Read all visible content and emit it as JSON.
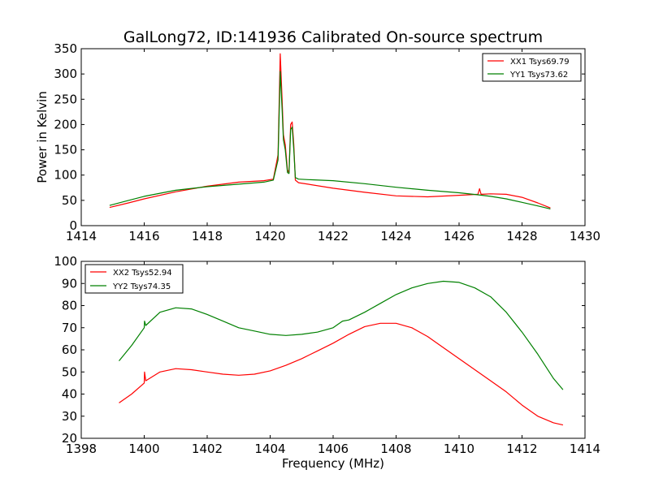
{
  "chart_data": [
    {
      "type": "line",
      "title": "GalLong72, ID:141936 Calibrated On-source spectrum",
      "xlabel": "",
      "ylabel": "Power in Kelvin",
      "xlim": [
        1414,
        1430
      ],
      "ylim": [
        0,
        350
      ],
      "xticks": [
        1414,
        1416,
        1418,
        1420,
        1422,
        1424,
        1426,
        1428,
        1430
      ],
      "yticks": [
        0,
        50,
        100,
        150,
        200,
        250,
        300,
        350
      ],
      "legend": "top-right",
      "series": [
        {
          "name": "XX1 Tsys69.79",
          "color": "#ff0000",
          "x": [
            1414.9,
            1415.5,
            1416.0,
            1417.0,
            1418.0,
            1419.0,
            1419.8,
            1420.1,
            1420.25,
            1420.32,
            1420.38,
            1420.42,
            1420.48,
            1420.55,
            1420.6,
            1420.65,
            1420.7,
            1420.75,
            1420.8,
            1420.9,
            1421.2,
            1422.0,
            1423.0,
            1424.0,
            1425.0,
            1426.0,
            1426.6,
            1426.65,
            1426.7,
            1427.0,
            1427.5,
            1428.0,
            1428.5,
            1428.9
          ],
          "values": [
            36,
            45,
            53,
            67,
            78,
            86,
            89,
            92,
            140,
            340,
            250,
            180,
            160,
            110,
            105,
            200,
            205,
            160,
            90,
            85,
            82,
            74,
            66,
            59,
            57,
            60,
            62,
            73,
            62,
            63,
            62,
            56,
            45,
            35
          ]
        },
        {
          "name": "YY1 Tsys73.62",
          "color": "#008000",
          "x": [
            1414.9,
            1415.5,
            1416.0,
            1417.0,
            1418.0,
            1419.0,
            1419.8,
            1420.1,
            1420.25,
            1420.32,
            1420.38,
            1420.42,
            1420.48,
            1420.55,
            1420.6,
            1420.65,
            1420.7,
            1420.75,
            1420.8,
            1420.9,
            1421.2,
            1422.0,
            1423.0,
            1424.0,
            1425.0,
            1426.0,
            1426.6,
            1427.0,
            1427.5,
            1428.0,
            1428.5,
            1428.9
          ],
          "values": [
            40,
            50,
            58,
            70,
            77,
            82,
            86,
            90,
            130,
            305,
            230,
            170,
            150,
            105,
            103,
            190,
            195,
            150,
            95,
            92,
            91,
            89,
            83,
            76,
            70,
            65,
            61,
            58,
            53,
            46,
            39,
            33
          ]
        }
      ]
    },
    {
      "type": "line",
      "title": "",
      "xlabel": "Frequency (MHz)",
      "ylabel": "",
      "xlim": [
        1398,
        1414
      ],
      "ylim": [
        20,
        100
      ],
      "xticks": [
        1398,
        1400,
        1402,
        1404,
        1406,
        1408,
        1410,
        1412,
        1414
      ],
      "yticks": [
        20,
        30,
        40,
        50,
        60,
        70,
        80,
        90,
        100
      ],
      "legend": "top-left",
      "series": [
        {
          "name": "XX2 Tsys52.94",
          "color": "#ff0000",
          "x": [
            1399.2,
            1399.6,
            1400.0,
            1400.01,
            1400.05,
            1400.5,
            1401.0,
            1401.5,
            1402.0,
            1402.5,
            1403.0,
            1403.5,
            1404.0,
            1404.5,
            1405.0,
            1405.5,
            1406.0,
            1406.5,
            1407.0,
            1407.5,
            1408.0,
            1408.5,
            1409.0,
            1409.5,
            1410.0,
            1410.5,
            1411.0,
            1411.5,
            1412.0,
            1412.5,
            1413.0,
            1413.3
          ],
          "values": [
            36,
            40,
            45,
            50,
            46,
            50,
            51.5,
            51,
            50,
            49,
            48.5,
            49,
            50.5,
            53,
            56,
            59.5,
            63,
            67,
            70.5,
            72,
            72,
            70,
            66,
            61,
            56,
            51,
            46,
            41,
            35,
            30,
            27,
            26
          ]
        },
        {
          "name": "YY2 Tsys74.35",
          "color": "#008000",
          "x": [
            1399.2,
            1399.6,
            1400.0,
            1400.01,
            1400.05,
            1400.5,
            1401.0,
            1401.5,
            1402.0,
            1402.5,
            1403.0,
            1403.5,
            1404.0,
            1404.5,
            1405.0,
            1405.5,
            1406.0,
            1406.2,
            1406.3,
            1406.5,
            1407.0,
            1407.5,
            1408.0,
            1408.5,
            1409.0,
            1409.5,
            1410.0,
            1410.5,
            1411.0,
            1411.5,
            1412.0,
            1412.5,
            1413.0,
            1413.3
          ],
          "values": [
            55,
            62,
            70,
            73,
            71,
            77,
            79,
            78.5,
            76,
            73,
            70,
            68.5,
            67,
            66.5,
            67,
            68,
            70,
            72,
            73,
            73.5,
            77,
            81,
            85,
            88,
            90,
            91,
            90.5,
            88,
            84,
            77,
            68,
            58,
            47,
            42
          ]
        }
      ]
    }
  ]
}
